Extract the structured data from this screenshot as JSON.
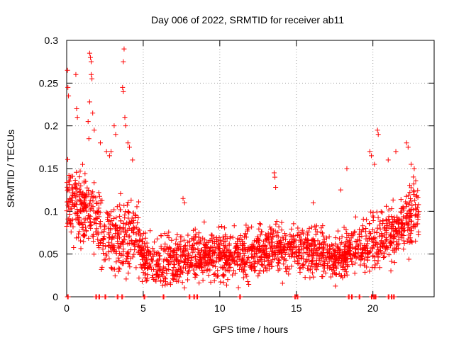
{
  "chart_data": {
    "type": "scatter",
    "title": "Day 006 of 2022, SRMTID for receiver ab11",
    "xlabel": "GPS time / hours",
    "ylabel": "SRMTID / TECUs",
    "xlim": [
      0,
      24
    ],
    "ylim": [
      0,
      0.3
    ],
    "x_ticks": [
      0,
      5,
      10,
      15,
      20
    ],
    "x_tick_labels": [
      "0",
      "5",
      "10",
      "15",
      "20"
    ],
    "y_ticks": [
      0,
      0.05,
      0.1,
      0.15,
      0.2,
      0.25,
      0.3
    ],
    "y_tick_labels": [
      "0",
      "0.05",
      "0.1",
      "0.15",
      "0.2",
      "0.25",
      "0.3"
    ],
    "grid": true,
    "marker": "+",
    "color": "#ff0000",
    "series": [
      {
        "name": "SRMTID",
        "trend_x": [
          0,
          0.5,
          1,
          1.5,
          2,
          2.5,
          3,
          3.5,
          4,
          4.5,
          5,
          6,
          7,
          8,
          9,
          10,
          11,
          12,
          13,
          14,
          15,
          16,
          17,
          17.5,
          18,
          19,
          20,
          20.5,
          21,
          21.5,
          22,
          22.5,
          23
        ],
        "trend_y": [
          0.11,
          0.11,
          0.105,
          0.1,
          0.09,
          0.075,
          0.07,
          0.068,
          0.07,
          0.075,
          0.045,
          0.04,
          0.042,
          0.045,
          0.048,
          0.05,
          0.047,
          0.05,
          0.055,
          0.058,
          0.055,
          0.055,
          0.048,
          0.045,
          0.05,
          0.06,
          0.065,
          0.065,
          0.07,
          0.075,
          0.085,
          0.095,
          0.1
        ],
        "spread": 0.025,
        "approx_point_count": 2200,
        "outliers": [
          [
            0.05,
            0.265
          ],
          [
            0.08,
            0.245
          ],
          [
            0.12,
            0.235
          ],
          [
            0.6,
            0.26
          ],
          [
            0.65,
            0.22
          ],
          [
            0.7,
            0.21
          ],
          [
            1.4,
            0.205
          ],
          [
            1.45,
            0.185
          ],
          [
            1.5,
            0.285
          ],
          [
            1.55,
            0.28
          ],
          [
            1.6,
            0.275
          ],
          [
            1.6,
            0.26
          ],
          [
            1.65,
            0.255
          ],
          [
            1.5,
            0.228
          ],
          [
            1.7,
            0.215
          ],
          [
            1.8,
            0.195
          ],
          [
            2.2,
            0.18
          ],
          [
            2.6,
            0.17
          ],
          [
            2.8,
            0.165
          ],
          [
            2.9,
            0.17
          ],
          [
            3.1,
            0.2
          ],
          [
            3.2,
            0.19
          ],
          [
            3.75,
            0.29
          ],
          [
            3.7,
            0.275
          ],
          [
            3.65,
            0.245
          ],
          [
            3.7,
            0.24
          ],
          [
            3.8,
            0.21
          ],
          [
            3.85,
            0.2
          ],
          [
            4.0,
            0.18
          ],
          [
            4.1,
            0.175
          ],
          [
            4.3,
            0.16
          ],
          [
            7.6,
            0.115
          ],
          [
            7.7,
            0.11
          ],
          [
            13.55,
            0.145
          ],
          [
            13.6,
            0.14
          ],
          [
            13.65,
            0.128
          ],
          [
            16.1,
            0.11
          ],
          [
            17.9,
            0.125
          ],
          [
            18.3,
            0.15
          ],
          [
            19.8,
            0.17
          ],
          [
            19.9,
            0.165
          ],
          [
            20.3,
            0.195
          ],
          [
            20.35,
            0.19
          ],
          [
            20.1,
            0.155
          ],
          [
            21.0,
            0.16
          ],
          [
            21.5,
            0.17
          ],
          [
            22.2,
            0.18
          ],
          [
            22.3,
            0.175
          ],
          [
            22.5,
            0.155
          ],
          [
            22.7,
            0.15
          ]
        ],
        "zero_points": [
          0.05,
          1.9,
          2.1,
          2.5,
          3.3,
          3.6,
          5.05,
          6.3,
          8.0,
          8.3,
          8.5,
          11.3,
          14.9,
          15.05,
          18.4,
          18.6,
          19.1,
          19.9,
          20.05,
          20.15,
          21.0,
          21.2,
          21.35
        ]
      }
    ]
  }
}
